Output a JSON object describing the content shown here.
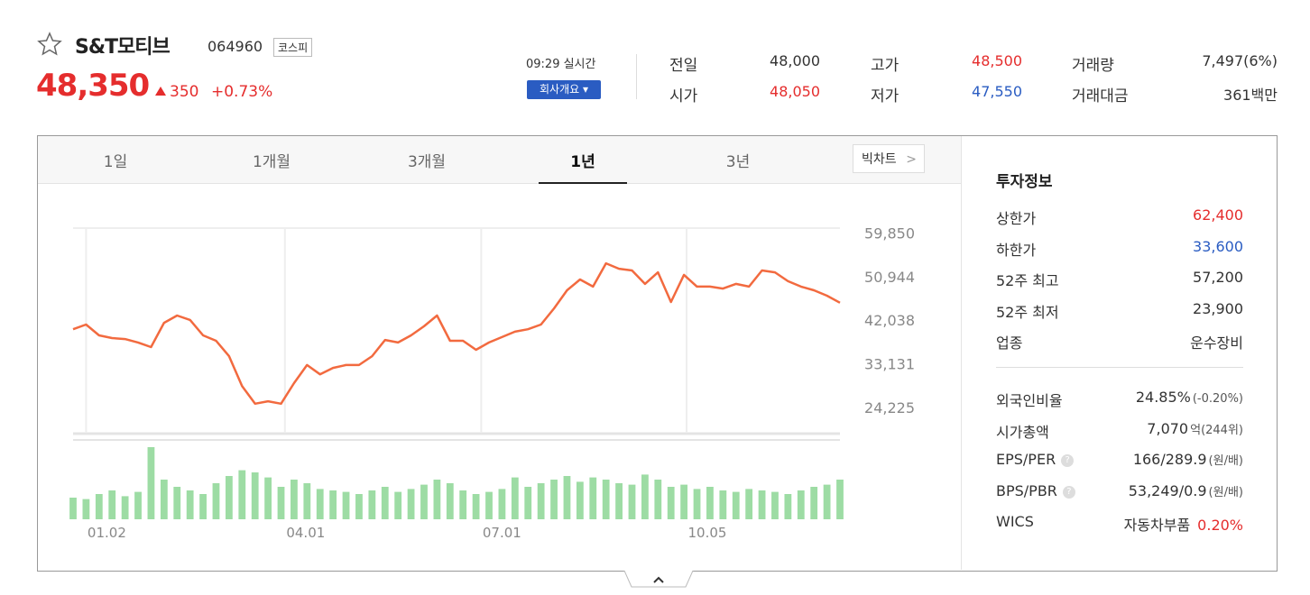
{
  "header": {
    "name": "S&T모티브",
    "code": "064960",
    "market": "코스피",
    "price": "48,350",
    "change": "350",
    "change_rate": "+0.73%",
    "time": "09:29 실시간",
    "company_button": "회사개요"
  },
  "quote": [
    {
      "label": "전일",
      "value": "48,000",
      "color": "#333333"
    },
    {
      "label": "시가",
      "value": "48,050",
      "color": "#e52d2d"
    },
    {
      "label": "고가",
      "value": "48,500",
      "color": "#e52d2d"
    },
    {
      "label": "저가",
      "value": "47,550",
      "color": "#2a5cc2"
    },
    {
      "label": "거래량",
      "value": "7,497(6%)",
      "color": "#333333"
    },
    {
      "label": "거래대금",
      "value": "361백만",
      "color": "#333333"
    }
  ],
  "tabs": [
    "1일",
    "1개월",
    "3개월",
    "1년",
    "3년"
  ],
  "active_tab": 3,
  "bigchart": "빅차트",
  "info": {
    "title": "투자정보",
    "rows": [
      {
        "label": "상한가",
        "value": "62,400",
        "color": "#e52d2d"
      },
      {
        "label": "하한가",
        "value": "33,600",
        "color": "#2a5cc2"
      },
      {
        "label": "52주 최고",
        "value": "57,200",
        "color": "#333333"
      },
      {
        "label": "52주 최저",
        "value": "23,900",
        "color": "#333333"
      },
      {
        "label": "업종",
        "value": "운수장비",
        "color": "#333333"
      }
    ],
    "rows2": [
      {
        "label": "외국인비율",
        "value": "24.85%",
        "note": "(-0.20%)"
      },
      {
        "label": "시가총액",
        "value": "7,070",
        "note": "억(244위)"
      },
      {
        "label": "EPS/PER",
        "value": "166/289.9",
        "note": "(원/배)"
      },
      {
        "label": "BPS/PBR",
        "value": "53,249/0.9",
        "note": "(원/배)"
      },
      {
        "label": "WICS",
        "value": "자동차부품",
        "note": "0.20%"
      }
    ]
  },
  "chart_data": {
    "type": "line",
    "color": "#f26a3f",
    "values": [
      40200,
      41150,
      38950,
      38400,
      38200,
      37500,
      36550,
      41500,
      43000,
      42100,
      38950,
      37850,
      34700,
      28600,
      25000,
      25500,
      25000,
      29200,
      32900,
      31000,
      32300,
      32900,
      32900,
      34700,
      38000,
      37500,
      38950,
      40800,
      43000,
      37850,
      37850,
      36000,
      37500,
      38600,
      39700,
      40200,
      41150,
      44450,
      48150,
      50350,
      48900,
      53650,
      52550,
      52200,
      49450,
      51800,
      45750,
      51300,
      48900,
      48900,
      48500,
      49450,
      48900,
      52200,
      51800,
      50000,
      48900,
      48150,
      47050,
      45600
    ],
    "xlim": [
      0,
      59
    ],
    "xticks": [
      {
        "value": 1,
        "label": "01.02"
      },
      {
        "value": 16.3,
        "label": "04.01"
      },
      {
        "value": 31.4,
        "label": "07.01"
      },
      {
        "value": 47.2,
        "label": "10.05"
      }
    ],
    "ylim": [
      19073,
      60842
    ],
    "yticks": [
      {
        "value": 59850,
        "label": "59,850"
      },
      {
        "value": 50944,
        "label": "50,944"
      },
      {
        "value": 42038,
        "label": "42,038"
      },
      {
        "value": 33131,
        "label": "33,131"
      },
      {
        "value": 24225,
        "label": "24,225"
      }
    ],
    "grid": true,
    "volume_color": "#9ddca4",
    "y2lim": [
      0,
      100
    ],
    "volume": [
      30,
      28,
      35,
      40,
      32,
      38,
      100,
      55,
      45,
      40,
      35,
      50,
      60,
      68,
      65,
      58,
      45,
      55,
      50,
      42,
      40,
      38,
      35,
      40,
      45,
      38,
      42,
      48,
      55,
      50,
      40,
      35,
      38,
      42,
      58,
      45,
      50,
      55,
      60,
      52,
      58,
      55,
      50,
      48,
      62,
      55,
      45,
      48,
      42,
      45,
      40,
      38,
      42,
      40,
      38,
      35,
      40,
      45,
      48,
      55
    ]
  }
}
